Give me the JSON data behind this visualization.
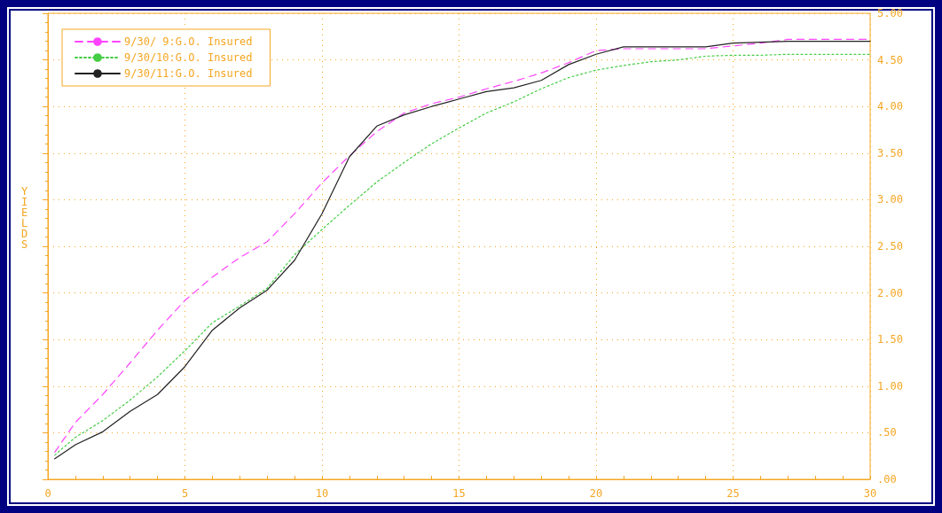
{
  "chart_data": {
    "type": "line",
    "ylabel": "YIELDS",
    "x": [
      0.25,
      1,
      2,
      3,
      4,
      5,
      6,
      7,
      8,
      9,
      10,
      11,
      12,
      13,
      14,
      15,
      16,
      17,
      18,
      19,
      20,
      21,
      22,
      23,
      24,
      25,
      26,
      27,
      28,
      29,
      30
    ],
    "series": [
      {
        "name": "9/30/ 9:G.O. Insured",
        "color": "#ff44ff",
        "line_style": "dashed",
        "values": [
          0.29,
          0.61,
          0.91,
          1.25,
          1.6,
          1.92,
          2.17,
          2.38,
          2.55,
          2.85,
          3.18,
          3.47,
          3.73,
          3.93,
          4.03,
          4.1,
          4.19,
          4.27,
          4.36,
          4.47,
          4.6,
          4.62,
          4.62,
          4.62,
          4.62,
          4.65,
          4.68,
          4.72,
          4.72,
          4.72,
          4.72
        ]
      },
      {
        "name": "9/30/10:G.O. Insured",
        "color": "#44cc44",
        "line_style": "dotted",
        "values": [
          0.26,
          0.45,
          0.63,
          0.85,
          1.1,
          1.38,
          1.68,
          1.86,
          2.05,
          2.41,
          2.68,
          2.94,
          3.19,
          3.4,
          3.6,
          3.77,
          3.93,
          4.05,
          4.19,
          4.31,
          4.39,
          4.44,
          4.48,
          4.5,
          4.54,
          4.55,
          4.55,
          4.56,
          4.56,
          4.56,
          4.56
        ]
      },
      {
        "name": "9/30/11:G.O. Insured",
        "color": "#222222",
        "line_style": "solid",
        "values": [
          0.22,
          0.37,
          0.51,
          0.73,
          0.91,
          1.21,
          1.6,
          1.84,
          2.03,
          2.35,
          2.85,
          3.46,
          3.79,
          3.91,
          4.0,
          4.08,
          4.16,
          4.2,
          4.28,
          4.45,
          4.56,
          4.64,
          4.64,
          4.64,
          4.64,
          4.68,
          4.69,
          4.7,
          4.7,
          4.7,
          4.7
        ]
      }
    ],
    "xlim": [
      0,
      30
    ],
    "xticks": [
      0,
      5,
      10,
      15,
      20,
      25,
      30
    ],
    "ylim": [
      0,
      5
    ],
    "yticks": [
      {
        "value": 0,
        "label": ".00"
      },
      {
        "value": 0.5,
        "label": ".50"
      },
      {
        "value": 1,
        "label": "1.00"
      },
      {
        "value": 1.5,
        "label": "1.50"
      },
      {
        "value": 2,
        "label": "2.00"
      },
      {
        "value": 2.5,
        "label": "2.50"
      },
      {
        "value": 3,
        "label": "3.00"
      },
      {
        "value": 3.5,
        "label": "3.50"
      },
      {
        "value": 4,
        "label": "4.00"
      },
      {
        "value": 4.5,
        "label": "4.50"
      },
      {
        "value": 5,
        "label": "5.00"
      }
    ],
    "grid": true,
    "legend": "top left",
    "marker": "none"
  }
}
